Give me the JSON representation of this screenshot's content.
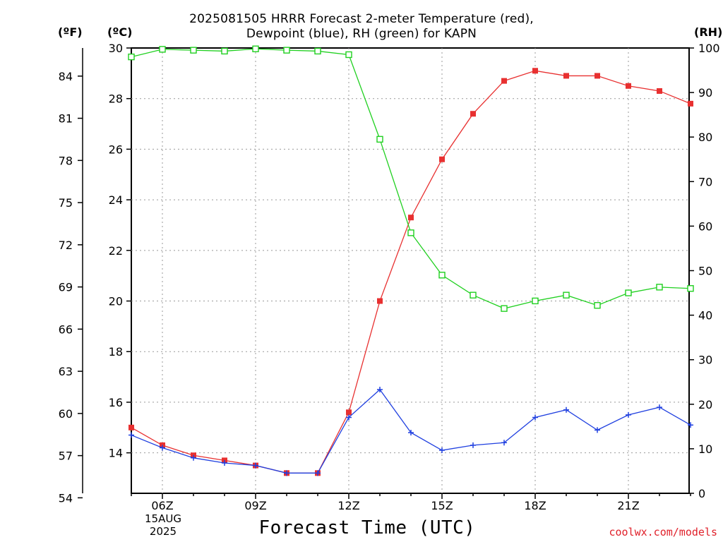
{
  "title": {
    "line1": "2025081505 HRRR Forecast 2-meter Temperature (red),",
    "line2": "Dewpoint (blue), RH (green) for KAPN"
  },
  "units": {
    "f": "(ºF)",
    "c": "(ºC)",
    "rh": "(RH)"
  },
  "xlabel": "Forecast Time (UTC)",
  "date": {
    "day": "15AUG",
    "year": "2025"
  },
  "source": "coolwx.com/models",
  "colors": {
    "temperature": "#e83030",
    "dewpoint": "#2040e0",
    "rh": "#20d020",
    "grid": "#999999"
  },
  "chart_data": {
    "type": "line",
    "x": [
      "05Z",
      "06Z",
      "07Z",
      "08Z",
      "09Z",
      "10Z",
      "11Z",
      "12Z",
      "13Z",
      "14Z",
      "15Z",
      "16Z",
      "17Z",
      "18Z",
      "19Z",
      "20Z",
      "21Z",
      "22Z",
      "23Z"
    ],
    "x_tick_labels": [
      "06Z",
      "09Z",
      "12Z",
      "15Z",
      "18Z",
      "21Z"
    ],
    "left_axis_c": {
      "ylim": [
        12.4,
        30
      ],
      "ticks": [
        14,
        16,
        18,
        20,
        22,
        24,
        26,
        28,
        30
      ]
    },
    "left_axis_f": {
      "ticks": [
        54,
        57,
        60,
        63,
        66,
        69,
        72,
        75,
        78,
        81,
        84
      ]
    },
    "right_axis_rh": {
      "ylim": [
        0,
        100
      ],
      "ticks": [
        0,
        10,
        20,
        30,
        40,
        50,
        60,
        70,
        80,
        90,
        100
      ]
    },
    "grid": true,
    "series": [
      {
        "name": "Temperature",
        "axis": "c",
        "marker": "filled-square",
        "values": [
          15.0,
          14.3,
          13.9,
          13.7,
          13.5,
          13.2,
          13.2,
          15.6,
          20.0,
          23.3,
          25.6,
          27.4,
          28.7,
          29.1,
          28.9,
          28.9,
          28.5,
          28.3,
          27.8
        ]
      },
      {
        "name": "Dewpoint",
        "axis": "c",
        "marker": "plus",
        "values": [
          14.7,
          14.2,
          13.8,
          13.6,
          13.5,
          13.2,
          13.2,
          15.4,
          16.5,
          14.8,
          14.1,
          14.3,
          14.4,
          15.4,
          15.7,
          14.9,
          15.5,
          15.8,
          15.1
        ]
      },
      {
        "name": "RH",
        "axis": "rh",
        "marker": "open-square",
        "values": [
          98,
          99.7,
          99.5,
          99.3,
          99.8,
          99.5,
          99.3,
          98.5,
          79.5,
          58.5,
          49,
          44.5,
          41.5,
          43.2,
          44.5,
          42.2,
          45,
          46.3,
          46
        ]
      }
    ]
  }
}
